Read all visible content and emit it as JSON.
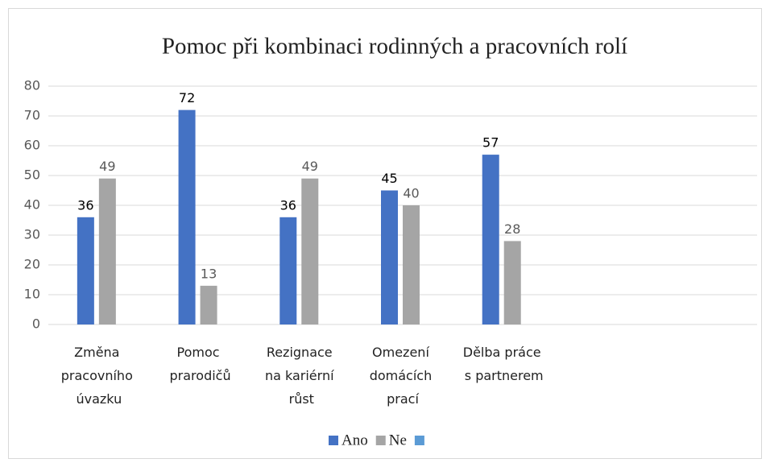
{
  "chart_data": {
    "type": "bar",
    "title": "Pomoc při kombinaci rodinných a pracovních rolí",
    "categories": [
      "Změna pracovního úvazku",
      "Pomoc prarodičů",
      "Rezignace na kariérní růst",
      "Omezení domácích prací",
      "Dělba práce s partnerem",
      null,
      null
    ],
    "series": [
      {
        "name": "Ano",
        "color": "#4472c4",
        "values": [
          36,
          72,
          36,
          45,
          57,
          null,
          null
        ]
      },
      {
        "name": "Ne",
        "color": "#a5a5a5",
        "values": [
          49,
          13,
          49,
          40,
          28,
          null,
          null
        ]
      },
      {
        "color": "#5b9bd5",
        "values": [
          null,
          null,
          null,
          null,
          null,
          null,
          null
        ]
      }
    ],
    "ylim": [
      0,
      80
    ],
    "yticks": [
      0,
      10,
      20,
      30,
      40,
      50,
      60,
      70,
      80
    ],
    "grid": true,
    "legend": "bottom"
  }
}
